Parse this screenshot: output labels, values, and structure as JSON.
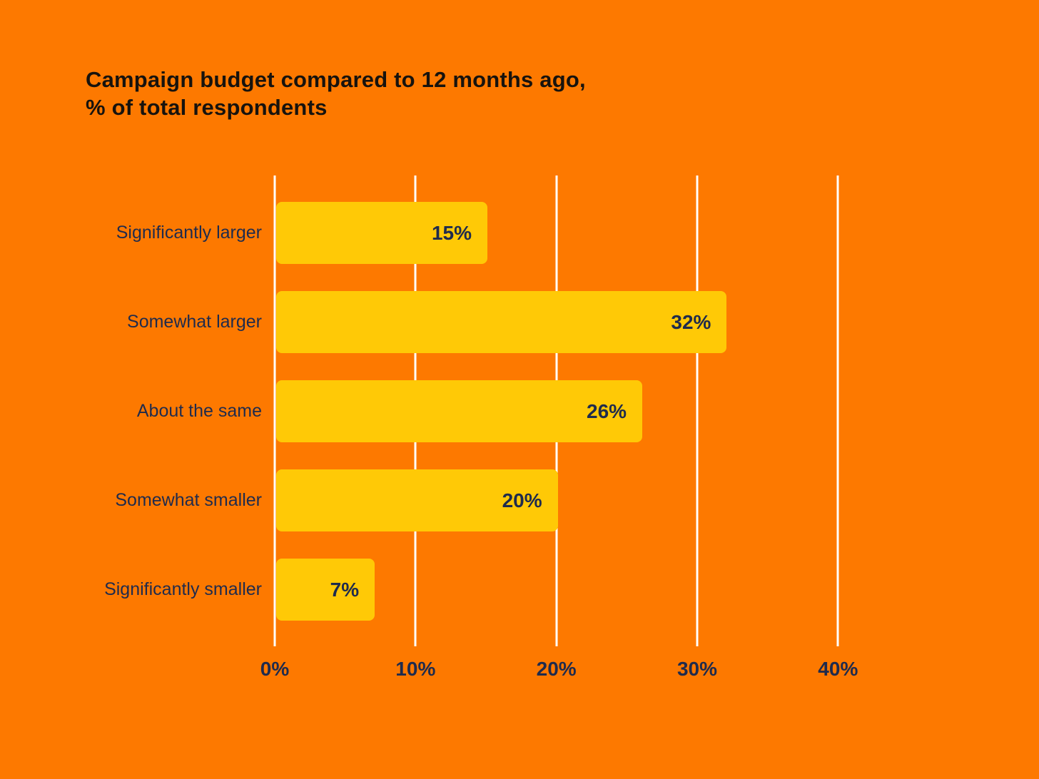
{
  "page": {
    "background_color": "#FD7900"
  },
  "title": {
    "text": "Campaign budget compared to 12 months ago,\n% of total respondents"
  },
  "chart_data": {
    "type": "bar",
    "orientation": "horizontal",
    "title": "Campaign budget compared to 12 months ago, % of total respondents",
    "categories": [
      "Significantly larger",
      "Somewhat larger",
      "About the same",
      "Somewhat smaller",
      "Significantly smaller"
    ],
    "values": [
      15,
      32,
      26,
      20,
      7
    ],
    "value_labels": [
      "15%",
      "32%",
      "26%",
      "20%",
      "7%"
    ],
    "xlabel": "",
    "ylabel": "",
    "x_ticks": [
      "0%",
      "10%",
      "20%",
      "30%",
      "40%"
    ],
    "x_tick_values": [
      0,
      10,
      20,
      30,
      40
    ],
    "xlim": [
      0,
      45
    ],
    "grid": "vertical-white-lines",
    "legend": "none",
    "colors": {
      "background": "#FD7900",
      "bar": "#FFC906",
      "gridline": "#FFFFFF",
      "label": "#1F2B4D",
      "title": "#17130E"
    }
  }
}
